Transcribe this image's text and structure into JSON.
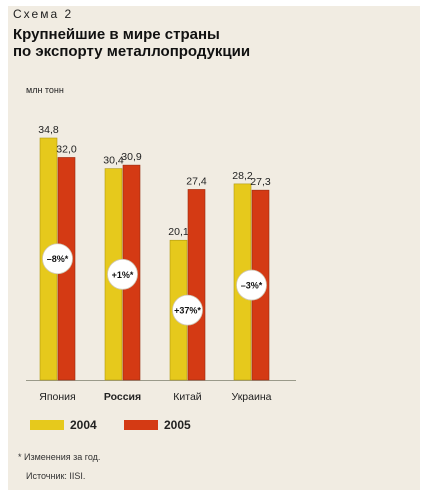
{
  "header": {
    "label": "Схема 2",
    "title_line1": "Крупнейшие в мире страны",
    "title_line2": "по экспорту металлопродукции",
    "unit": "млн тонн"
  },
  "colors": {
    "panel": "#f1ece2",
    "series_2004": "#e6c91c",
    "series_2004_edge": "#b09a12",
    "series_2005": "#d43a14",
    "series_2005_edge": "#9a2a10",
    "baseline": "#9a9a8a"
  },
  "legend": {
    "items": [
      {
        "label": "2004",
        "color": "#e6c91c"
      },
      {
        "label": "2005",
        "color": "#d43a14"
      }
    ]
  },
  "footnote": "* Изменения за год.",
  "source": "Источник: IISI.",
  "chart_data": {
    "type": "bar",
    "categories": [
      "Япония",
      "Россия",
      "Китай",
      "Украина"
    ],
    "category_bold": [
      false,
      true,
      false,
      false
    ],
    "series": [
      {
        "name": "2004",
        "values": [
          34.8,
          30.4,
          20.1,
          28.2
        ],
        "labels": [
          "34,8",
          "30,4",
          "20,1",
          "28,2"
        ]
      },
      {
        "name": "2005",
        "values": [
          32.0,
          30.9,
          27.4,
          27.3
        ],
        "labels": [
          "32,0",
          "30,9",
          "27,4",
          "27,3"
        ]
      }
    ],
    "changes": [
      "–8%*",
      "+1%*",
      "+37%*",
      "–3%*"
    ],
    "ylim": [
      0,
      34.8
    ],
    "ylabel": "млн тонн",
    "grid": false
  }
}
